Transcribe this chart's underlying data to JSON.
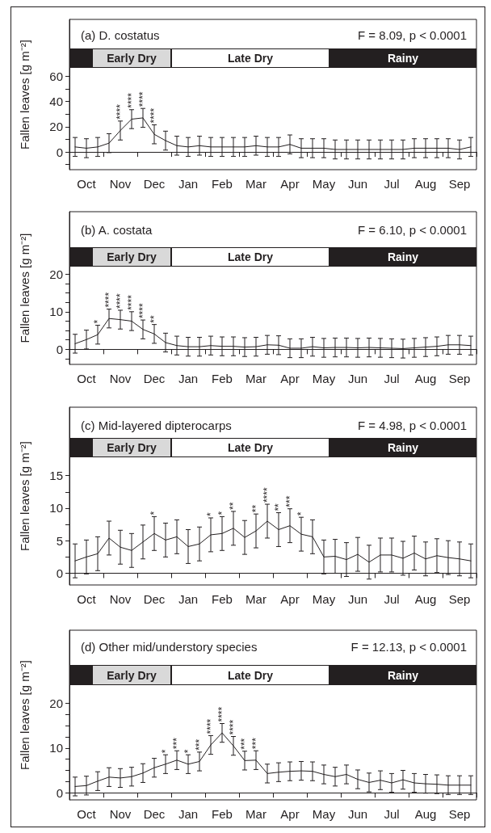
{
  "chart_data": [
    {
      "type": "line",
      "title": "(a) D. costatus",
      "subtitle": "F = 8.09, p < 0.0001",
      "ylabel": "Fallen leaves [g m⁻²]",
      "color": "#231f20",
      "marker": "none",
      "categories": [
        null,
        "Oct",
        null,
        null,
        "Nov",
        null,
        null,
        "Dec",
        null,
        null,
        "Jan",
        null,
        null,
        "Feb",
        null,
        null,
        "Mar",
        null,
        null,
        "Apr",
        null,
        null,
        "May",
        null,
        null,
        "Jun",
        null,
        null,
        "Jul",
        null,
        null,
        "Aug",
        null,
        null,
        "Sep",
        null
      ],
      "values": [
        4,
        3,
        4,
        7,
        17,
        26,
        27,
        14,
        9,
        5,
        4,
        5,
        4,
        4,
        4,
        4,
        5,
        4,
        4,
        6,
        3,
        3,
        3,
        2,
        2,
        2,
        2,
        2,
        2,
        2,
        3,
        3,
        3,
        3,
        2,
        4
      ],
      "errors": [
        7.5,
        7.5,
        7.5,
        7.5,
        7.5,
        7.5,
        7.5,
        7.5,
        7.5,
        7.5,
        7.5,
        7.5,
        7.5,
        7.5,
        7.5,
        7.5,
        7.5,
        7.5,
        7.5,
        7.5,
        7.5,
        7.5,
        7.5,
        7.5,
        7.5,
        7.5,
        7.5,
        7.5,
        7.5,
        7.5,
        7.5,
        7.5,
        7.5,
        7.5,
        7.5,
        7.5
      ],
      "value_labels": [
        null,
        null,
        null,
        null,
        "****",
        "****",
        "****",
        "****",
        null,
        null,
        null,
        null,
        null,
        null,
        null,
        null,
        null,
        null,
        null,
        null,
        null,
        null,
        null,
        null,
        null,
        null,
        null,
        null,
        null,
        null,
        null,
        null,
        null,
        null,
        null,
        null
      ],
      "ylim": [
        -14,
        105
      ],
      "yticks": [
        {
          "value": -10,
          "label": null
        },
        0,
        {
          "value": 10,
          "label": null
        },
        20,
        {
          "value": 30,
          "label": null
        },
        40,
        {
          "value": 50,
          "label": null
        },
        60
      ],
      "annotations": [
        "Early Dry",
        "Late Dry",
        "Rainy"
      ]
    },
    {
      "type": "line",
      "title": "(b) A. costata",
      "subtitle": "F = 6.10, p < 0.0001",
      "ylabel": "Fallen leaves [g m⁻²]",
      "color": "#231f20",
      "marker": "none",
      "categories": [
        null,
        "Oct",
        null,
        null,
        "Nov",
        null,
        null,
        "Dec",
        null,
        null,
        "Jan",
        null,
        null,
        "Feb",
        null,
        null,
        "Mar",
        null,
        null,
        "Apr",
        null,
        null,
        "May",
        null,
        null,
        "Jun",
        null,
        null,
        "Jul",
        null,
        null,
        "Aug",
        null,
        null,
        "Sep",
        null
      ],
      "values": [
        1.5,
        2.6,
        3.9,
        8.2,
        7.9,
        7.5,
        5.3,
        4.1,
        1.8,
        1.0,
        0.7,
        0.7,
        1.0,
        0.8,
        0.8,
        0.6,
        0.7,
        1.2,
        1.1,
        0.3,
        0.3,
        0.7,
        0.4,
        0.5,
        0.5,
        0.4,
        0.5,
        0.4,
        0.3,
        0.2,
        0.4,
        0.6,
        0.8,
        1.2,
        1.2,
        1.0
      ],
      "errors": [
        2.5,
        2.5,
        2.5,
        2.5,
        2.5,
        2.5,
        2.5,
        2.5,
        2.5,
        2.5,
        2.5,
        2.5,
        2.5,
        2.5,
        2.5,
        2.5,
        2.5,
        2.5,
        2.5,
        2.5,
        2.5,
        2.5,
        2.5,
        2.5,
        2.5,
        2.5,
        2.5,
        2.5,
        2.5,
        2.5,
        2.5,
        2.5,
        2.5,
        2.5,
        2.5,
        2.5
      ],
      "value_labels": [
        null,
        null,
        "*",
        "****",
        "****",
        "****",
        "****",
        "**",
        null,
        null,
        null,
        null,
        null,
        null,
        null,
        null,
        null,
        null,
        null,
        null,
        null,
        null,
        null,
        null,
        null,
        null,
        null,
        null,
        null,
        null,
        null,
        null,
        null,
        null,
        null,
        null
      ],
      "ylim": [
        -4,
        36.6
      ],
      "yticks": [
        {
          "value": -2.5,
          "label": null
        },
        0,
        {
          "value": 2.5,
          "label": null
        },
        {
          "value": 5,
          "label": null
        },
        {
          "value": 7.5,
          "label": null
        },
        10,
        {
          "value": 12.5,
          "label": null
        },
        {
          "value": 15,
          "label": null
        },
        {
          "value": 17.5,
          "label": null
        },
        20
      ],
      "annotations": [
        "Early Dry",
        "Late Dry",
        "Rainy"
      ]
    },
    {
      "type": "line",
      "title": "(c) Mid-layered dipterocarps",
      "subtitle": "F = 4.98, p < 0.0001",
      "ylabel": "Fallen leaves [g m⁻²]",
      "color": "#231f20",
      "marker": "none",
      "categories": [
        null,
        "Oct",
        null,
        null,
        "Nov",
        null,
        null,
        "Dec",
        null,
        null,
        "Jan",
        null,
        null,
        "Feb",
        null,
        null,
        "Mar",
        null,
        null,
        "Apr",
        null,
        null,
        "May",
        null,
        null,
        "Jun",
        null,
        null,
        "Jul",
        null,
        null,
        "Aug",
        null,
        null,
        "Sep",
        null
      ],
      "values": [
        1.9,
        2.5,
        3.0,
        5.4,
        4.0,
        3.5,
        4.8,
        6.1,
        5.1,
        5.6,
        4.1,
        4.5,
        5.9,
        6.1,
        6.9,
        5.5,
        6.5,
        8.0,
        6.7,
        7.3,
        6.0,
        5.6,
        2.5,
        2.6,
        2.1,
        2.9,
        1.7,
        2.8,
        2.8,
        2.3,
        3.1,
        2.2,
        2.7,
        2.4,
        2.2,
        1.9
      ],
      "errors": [
        2.6,
        2.6,
        2.6,
        2.6,
        2.6,
        2.6,
        2.6,
        2.6,
        2.6,
        2.6,
        2.6,
        2.6,
        2.6,
        2.6,
        2.6,
        2.6,
        2.6,
        2.6,
        2.6,
        2.6,
        2.6,
        2.6,
        2.6,
        2.6,
        2.6,
        2.6,
        2.6,
        2.6,
        2.6,
        2.6,
        2.6,
        2.6,
        2.6,
        2.6,
        2.6,
        2.6
      ],
      "value_labels": [
        null,
        null,
        null,
        null,
        null,
        null,
        null,
        "*",
        null,
        null,
        null,
        null,
        "*",
        "*",
        "**",
        null,
        "**",
        "****",
        "**",
        "***",
        "*",
        null,
        null,
        null,
        null,
        null,
        null,
        null,
        null,
        null,
        null,
        null,
        null,
        null,
        null,
        null
      ],
      "ylim": [
        -1.8,
        25.5
      ],
      "yticks": [
        0,
        {
          "value": 2.5,
          "label": null
        },
        5,
        {
          "value": 7.5,
          "label": null
        },
        10,
        {
          "value": 12.5,
          "label": null
        },
        15
      ],
      "annotations": [
        "Early Dry",
        "Late Dry",
        "Rainy"
      ]
    },
    {
      "type": "line",
      "title": "(d) Other mid/understory species",
      "subtitle": "F = 12.13, p < 0.0001",
      "ylabel": "Fallen leaves [g m⁻²]",
      "color": "#231f20",
      "marker": "none",
      "categories": [
        null,
        "Oct",
        null,
        null,
        "Nov",
        null,
        null,
        "Dec",
        null,
        null,
        "Jan",
        null,
        null,
        "Feb",
        null,
        null,
        "Mar",
        null,
        null,
        "Apr",
        null,
        null,
        "May",
        null,
        null,
        "Jun",
        null,
        null,
        "Jul",
        null,
        null,
        "Aug",
        null,
        null,
        "Sep",
        null
      ],
      "values": [
        1.4,
        1.6,
        2.6,
        3.5,
        3.3,
        3.6,
        4.4,
        5.6,
        6.4,
        7.3,
        6.4,
        7.0,
        10.7,
        13.4,
        10.5,
        7.2,
        7.3,
        4.3,
        4.6,
        4.8,
        4.9,
        4.8,
        4.1,
        3.6,
        4.1,
        3.0,
        2.3,
        2.8,
        2.2,
        2.9,
        2.2,
        2.0,
        1.9,
        1.7,
        1.7,
        1.7
      ],
      "errors": [
        2.1,
        2.1,
        2.1,
        2.1,
        2.1,
        2.1,
        2.1,
        2.1,
        2.1,
        2.1,
        2.1,
        2.1,
        2.1,
        2.1,
        2.1,
        2.1,
        2.1,
        2.1,
        2.1,
        2.1,
        2.1,
        2.1,
        2.1,
        2.1,
        2.1,
        2.1,
        2.1,
        2.1,
        2.1,
        2.1,
        2.1,
        2.1,
        2.1,
        2.1,
        2.1,
        2.1
      ],
      "value_labels": [
        null,
        null,
        null,
        null,
        null,
        null,
        null,
        null,
        "*",
        "***",
        "*",
        "***",
        "****",
        "****",
        "****",
        "***",
        "***",
        null,
        null,
        null,
        null,
        null,
        null,
        null,
        null,
        null,
        null,
        null,
        null,
        null,
        null,
        null,
        null,
        null,
        null,
        null
      ],
      "ylim": [
        -1.6,
        36.4
      ],
      "yticks": [
        0,
        {
          "value": 2.5,
          "label": null
        },
        {
          "value": 5,
          "label": null
        },
        {
          "value": 7.5,
          "label": null
        },
        10,
        {
          "value": 12.5,
          "label": null
        },
        {
          "value": 15,
          "label": null
        },
        {
          "value": 17.5,
          "label": null
        },
        20
      ],
      "annotations": [
        "Early Dry",
        "Late Dry",
        "Rainy"
      ]
    }
  ]
}
